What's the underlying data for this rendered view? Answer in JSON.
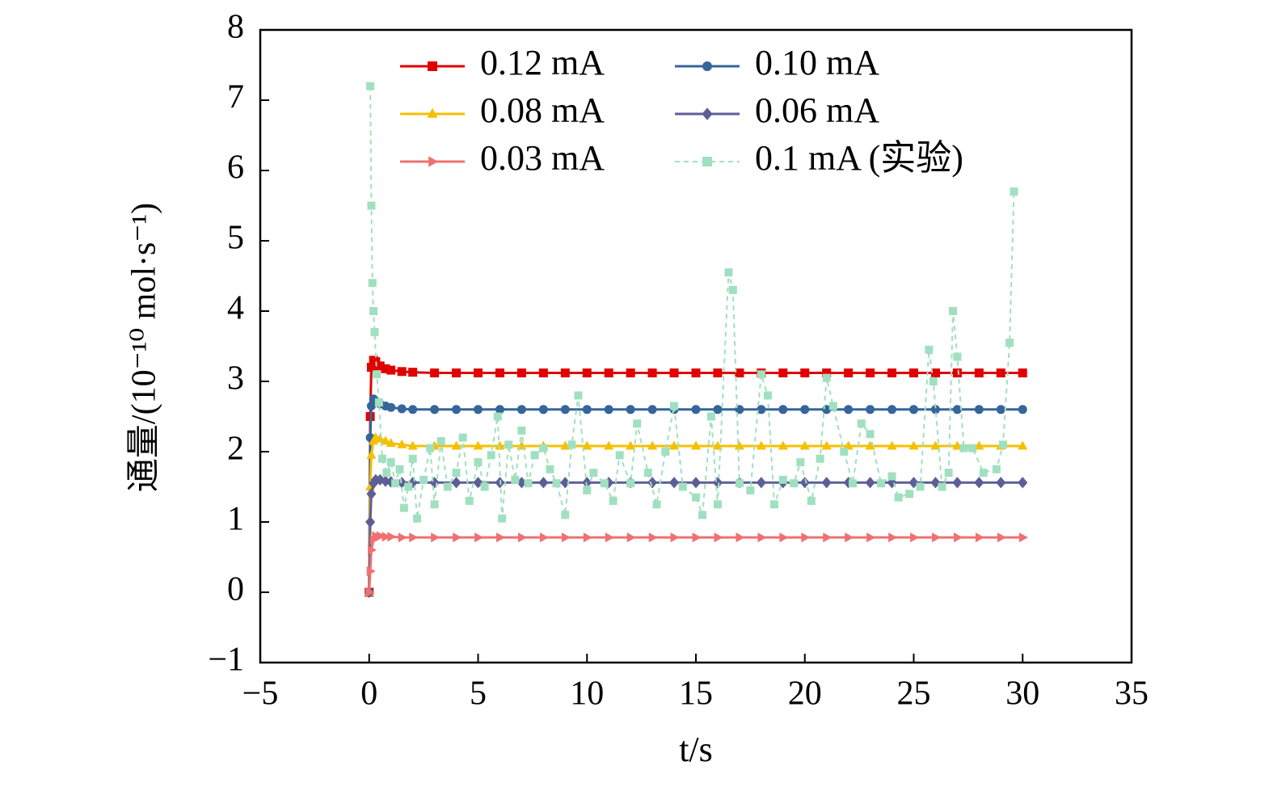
{
  "chart_data": {
    "type": "line",
    "xlabel": "t/s",
    "ylabel": "通量/(10⁻¹⁰ mol·s⁻¹)",
    "xlim": [
      -5,
      35
    ],
    "ylim": [
      -1,
      8
    ],
    "xticks": [
      {
        "value": -5,
        "label": "−5"
      },
      0,
      5,
      10,
      15,
      20,
      25,
      30,
      35
    ],
    "yticks": [
      {
        "value": -1,
        "label": "−1"
      },
      0,
      1,
      2,
      3,
      4,
      5,
      6,
      7,
      8
    ],
    "legend": "upper center",
    "x": [
      0,
      0.05,
      0.1,
      0.2,
      0.3,
      0.5,
      0.75,
      1,
      1.5,
      2,
      3,
      4,
      5,
      6,
      7,
      8,
      9,
      10,
      11,
      12,
      13,
      14,
      15,
      16,
      17,
      18,
      19,
      20,
      21,
      22,
      23,
      24,
      25,
      26,
      27,
      28,
      29,
      30
    ],
    "series": [
      {
        "name": "0.12 mA",
        "color": "#e00000",
        "marker": "square",
        "values": [
          0,
          2.5,
          3.2,
          3.3,
          3.28,
          3.22,
          3.18,
          3.16,
          3.14,
          3.13,
          3.12,
          3.12,
          3.12,
          3.12,
          3.12,
          3.12,
          3.12,
          3.12,
          3.12,
          3.12,
          3.12,
          3.12,
          3.12,
          3.12,
          3.12,
          3.12,
          3.12,
          3.12,
          3.12,
          3.12,
          3.12,
          3.12,
          3.12,
          3.12,
          3.12,
          3.12,
          3.12,
          3.12
        ]
      },
      {
        "name": "0.10 mA",
        "color": "#35659b",
        "marker": "circle",
        "values": [
          0,
          2.2,
          2.65,
          2.75,
          2.72,
          2.68,
          2.65,
          2.63,
          2.61,
          2.6,
          2.6,
          2.6,
          2.6,
          2.6,
          2.6,
          2.6,
          2.6,
          2.6,
          2.6,
          2.6,
          2.6,
          2.6,
          2.6,
          2.6,
          2.6,
          2.6,
          2.6,
          2.6,
          2.6,
          2.6,
          2.6,
          2.6,
          2.6,
          2.6,
          2.6,
          2.6,
          2.6,
          2.6
        ]
      },
      {
        "name": "0.08 mA",
        "color": "#f5c000",
        "marker": "triangle",
        "values": [
          0,
          1.5,
          1.95,
          2.15,
          2.2,
          2.18,
          2.15,
          2.12,
          2.1,
          2.08,
          2.08,
          2.08,
          2.08,
          2.08,
          2.08,
          2.08,
          2.08,
          2.08,
          2.08,
          2.08,
          2.08,
          2.08,
          2.08,
          2.08,
          2.08,
          2.08,
          2.08,
          2.08,
          2.08,
          2.08,
          2.08,
          2.08,
          2.08,
          2.08,
          2.08,
          2.08,
          2.08,
          2.08
        ]
      },
      {
        "name": "0.06 mA",
        "color": "#5e5e96",
        "marker": "diamond",
        "values": [
          0,
          1.0,
          1.4,
          1.55,
          1.6,
          1.6,
          1.58,
          1.57,
          1.56,
          1.56,
          1.56,
          1.56,
          1.56,
          1.56,
          1.56,
          1.56,
          1.56,
          1.56,
          1.56,
          1.56,
          1.56,
          1.56,
          1.56,
          1.56,
          1.56,
          1.56,
          1.56,
          1.56,
          1.56,
          1.56,
          1.56,
          1.56,
          1.56,
          1.56,
          1.56,
          1.56,
          1.56,
          1.56
        ]
      },
      {
        "name": "0.03 mA",
        "color": "#f07070",
        "marker": "triangle-right",
        "values": [
          0,
          0.3,
          0.6,
          0.75,
          0.8,
          0.8,
          0.79,
          0.79,
          0.78,
          0.78,
          0.78,
          0.78,
          0.78,
          0.78,
          0.78,
          0.78,
          0.78,
          0.78,
          0.78,
          0.78,
          0.78,
          0.78,
          0.78,
          0.78,
          0.78,
          0.78,
          0.78,
          0.78,
          0.78,
          0.78,
          0.78,
          0.78,
          0.78,
          0.78,
          0.78,
          0.78,
          0.78,
          0.78
        ]
      },
      {
        "name": "0.1 mA (实验)",
        "color": "#a0e0c0",
        "marker": "square",
        "dashed": true,
        "x": [
          0.05,
          0.1,
          0.15,
          0.2,
          0.25,
          0.35,
          0.45,
          0.6,
          0.8,
          1.0,
          1.2,
          1.4,
          1.6,
          1.8,
          2.0,
          2.2,
          2.5,
          2.8,
          3.0,
          3.3,
          3.6,
          4.0,
          4.3,
          4.6,
          5.0,
          5.3,
          5.6,
          5.9,
          6.1,
          6.4,
          6.7,
          7.0,
          7.3,
          7.6,
          8.0,
          8.3,
          8.6,
          9.0,
          9.3,
          9.6,
          10.0,
          10.3,
          10.8,
          11.2,
          11.5,
          12.0,
          12.3,
          12.8,
          13.2,
          13.6,
          14.0,
          14.4,
          15.0,
          15.3,
          15.7,
          16.0,
          16.5,
          16.7,
          17.0,
          17.5,
          18.0,
          18.3,
          18.6,
          19.0,
          19.5,
          19.8,
          20.3,
          20.7,
          21.0,
          21.3,
          21.8,
          22.2,
          22.6,
          23.0,
          23.5,
          24.0,
          24.3,
          24.8,
          25.3,
          25.7,
          25.9,
          26.3,
          26.6,
          26.8,
          27.0,
          27.3,
          27.7,
          28.2,
          28.8,
          29.1,
          29.4,
          29.6
        ],
        "values": [
          7.2,
          5.5,
          4.4,
          4.0,
          3.7,
          3.1,
          2.7,
          1.9,
          1.7,
          1.85,
          1.55,
          1.75,
          1.2,
          1.5,
          1.9,
          1.05,
          1.6,
          2.05,
          1.25,
          2.15,
          1.5,
          1.7,
          2.2,
          1.3,
          1.85,
          1.5,
          1.95,
          2.5,
          1.05,
          2.1,
          1.6,
          2.3,
          1.55,
          1.95,
          2.05,
          1.75,
          1.55,
          1.1,
          2.1,
          2.8,
          1.45,
          1.7,
          1.55,
          1.3,
          1.95,
          1.55,
          2.4,
          1.7,
          1.25,
          2.0,
          2.65,
          1.5,
          1.35,
          1.1,
          2.5,
          1.25,
          4.55,
          4.3,
          1.55,
          1.45,
          3.1,
          2.8,
          1.25,
          1.6,
          1.55,
          1.85,
          1.3,
          1.9,
          3.05,
          2.65,
          2.0,
          1.55,
          2.4,
          2.25,
          1.55,
          1.65,
          1.35,
          1.4,
          1.5,
          3.45,
          3.0,
          1.5,
          1.7,
          4.0,
          3.35,
          2.05,
          2.05,
          1.7,
          1.75,
          2.1,
          3.55,
          5.7
        ]
      }
    ]
  }
}
